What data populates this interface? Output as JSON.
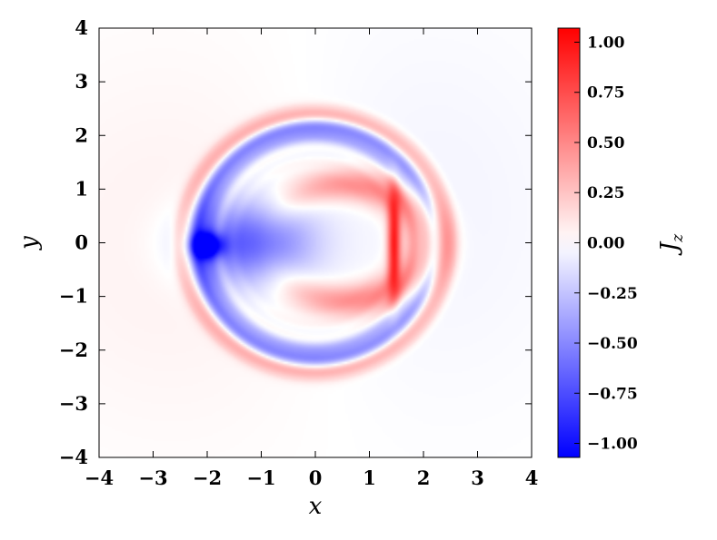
{
  "chart_data": {
    "type": "heatmap",
    "title": "",
    "xlabel": "x",
    "ylabel": "y",
    "xlim": [
      -4,
      4
    ],
    "ylim": [
      -4,
      4
    ],
    "x_ticks": [
      -4,
      -3,
      -2,
      -1,
      0,
      1,
      2,
      3,
      4
    ],
    "y_ticks": [
      -4,
      -3,
      -2,
      -1,
      0,
      1,
      2,
      3,
      4
    ],
    "x_tick_labels": [
      "−4",
      "−3",
      "−2",
      "−1",
      "0",
      "1",
      "2",
      "3",
      "4"
    ],
    "y_tick_labels": [
      "−4",
      "−3",
      "−2",
      "−1",
      "0",
      "1",
      "2",
      "3",
      "4"
    ],
    "grid": false,
    "colorbar": {
      "label": "J_z",
      "label_main": "J",
      "label_sub": "z",
      "range": [
        -1.07,
        1.07
      ],
      "colormap": "bwr",
      "colors": {
        "low": "#0000ff",
        "mid": "#ffffff",
        "high": "#ff0000"
      },
      "ticks": [
        1.0,
        0.75,
        0.5,
        0.25,
        0.0,
        -0.25,
        -0.5,
        -0.75,
        -1.0
      ],
      "tick_labels": [
        "1.00",
        "0.75",
        "0.50",
        "0.25",
        "0.00",
        "−0.25",
        "−0.50",
        "−0.75",
        "−1.00"
      ],
      "position": "right"
    },
    "features": [
      {
        "kind": "ring",
        "sign": "positive",
        "center": [
          0.0,
          0.0
        ],
        "radii": [
          2.58,
          2.28
        ],
        "amplitude": 0.35
      },
      {
        "kind": "ring",
        "sign": "negative",
        "center": [
          0.0,
          0.0
        ],
        "radii": [
          2.3,
          1.9
        ],
        "amplitude": -0.55
      },
      {
        "kind": "lobe",
        "sign": "negative",
        "center": [
          -1.2,
          0.0
        ],
        "radii": [
          1.1,
          0.75
        ],
        "amplitude": -0.75
      },
      {
        "kind": "spot",
        "sign": "negative",
        "center": [
          -2.0,
          -0.05
        ],
        "radii": [
          0.28,
          0.22
        ],
        "amplitude": -1.0
      },
      {
        "kind": "crescent",
        "sign": "positive",
        "center": [
          0.5,
          0.0
        ],
        "radii": [
          1.9,
          1.35
        ],
        "amplitude": 0.55
      },
      {
        "kind": "ridge",
        "sign": "positive",
        "center": [
          1.45,
          0.0
        ],
        "radii": [
          0.12,
          0.9
        ],
        "amplitude": 0.9
      },
      {
        "kind": "background",
        "sign": "positive",
        "center": [
          -2.4,
          0.0
        ],
        "radii": [
          3.2,
          3.5
        ],
        "amplitude": 0.06
      },
      {
        "kind": "background",
        "sign": "negative",
        "center": [
          1.8,
          0.6
        ],
        "radii": [
          2.8,
          3.5
        ],
        "amplitude": -0.05
      }
    ]
  }
}
